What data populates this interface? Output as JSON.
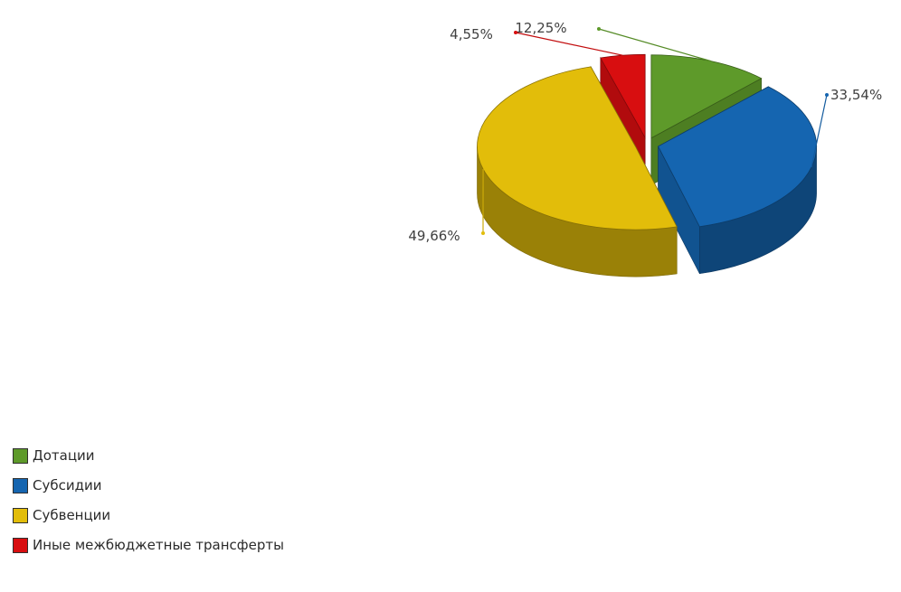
{
  "chart_data": {
    "type": "pie",
    "slices": [
      {
        "label": "Дотации",
        "value": 12.25,
        "percent_label": "12,25%",
        "color": "#5e9a2a"
      },
      {
        "label": "Субсидии",
        "value": 33.54,
        "percent_label": "33,54%",
        "color": "#1565b0"
      },
      {
        "label": "Субвенции",
        "value": 49.66,
        "percent_label": "49,66%",
        "color": "#e2bd0a"
      },
      {
        "label": "Иные межбюджетные трансферты",
        "value": 4.55,
        "percent_label": "4,55%",
        "color": "#d80e10"
      }
    ],
    "legend_position": "bottom-left",
    "style": "3d-exploded"
  }
}
